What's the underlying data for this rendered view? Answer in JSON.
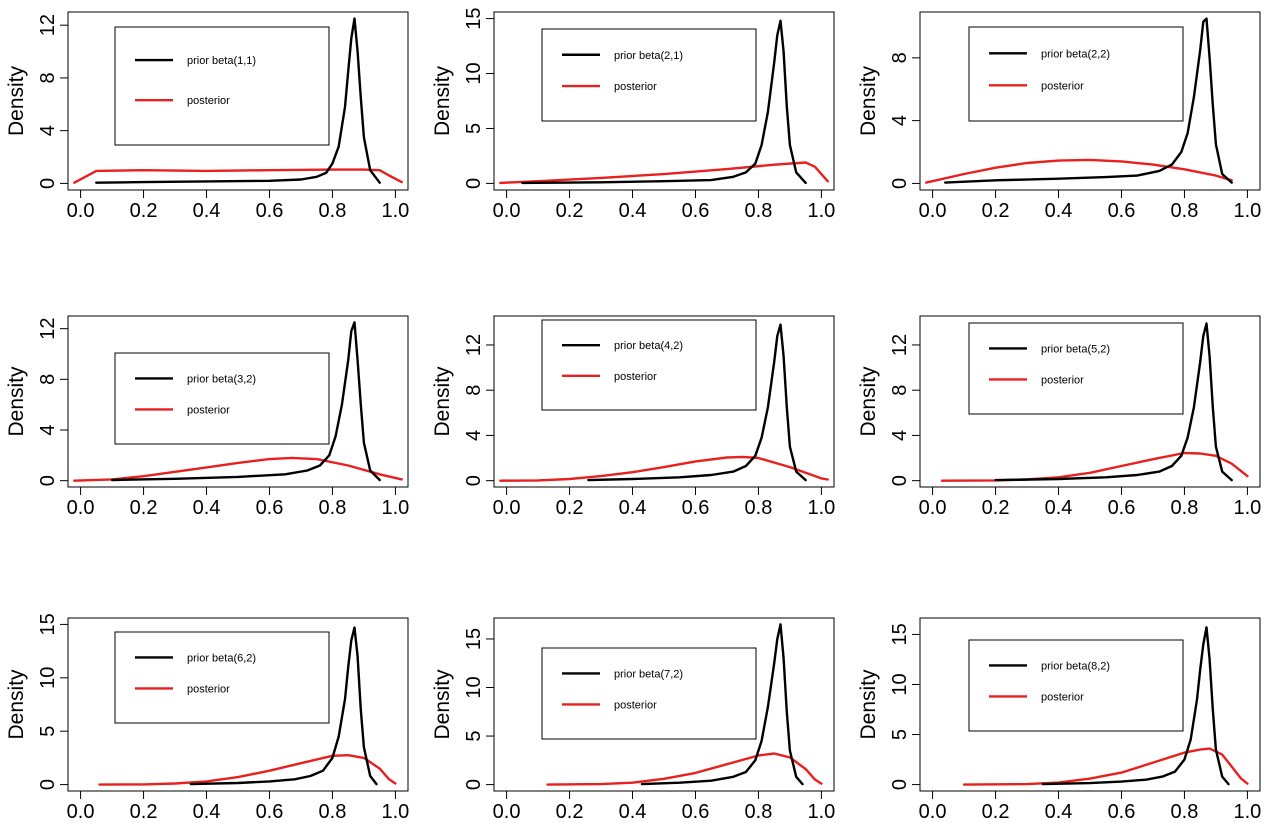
{
  "colors": {
    "prior": "#000000",
    "posterior": "#e8201e"
  },
  "chart_data": [
    {
      "type": "line",
      "ylabel": "Density",
      "xlim": [
        0,
        1.0
      ],
      "ylim": [
        0,
        12.5
      ],
      "xticks": [
        "0.0",
        "0.2",
        "0.4",
        "0.6",
        "0.8",
        "1.0"
      ],
      "yticks": [
        0,
        4,
        8,
        12
      ],
      "legend": {
        "position": "top-left",
        "entries": [
          "prior beta(1,1)",
          "posterior"
        ]
      },
      "series": [
        {
          "name": "prior beta(1,1)",
          "color": "#000000",
          "x": [
            0.05,
            0.2,
            0.4,
            0.6,
            0.7,
            0.75,
            0.78,
            0.8,
            0.82,
            0.84,
            0.85,
            0.86,
            0.87,
            0.88,
            0.89,
            0.9,
            0.92,
            0.95
          ],
          "y": [
            0.05,
            0.1,
            0.15,
            0.2,
            0.3,
            0.5,
            0.8,
            1.5,
            2.8,
            5.8,
            8.5,
            11.0,
            12.5,
            10.0,
            6.5,
            3.5,
            1.0,
            0.05
          ]
        },
        {
          "name": "posterior",
          "color": "#e8201e",
          "x": [
            -0.02,
            0.05,
            0.2,
            0.4,
            0.6,
            0.8,
            0.9,
            0.95,
            0.98,
            1.02
          ],
          "y": [
            0.05,
            0.95,
            1.0,
            0.95,
            1.0,
            1.05,
            1.05,
            1.0,
            0.6,
            0.1
          ]
        }
      ]
    },
    {
      "type": "line",
      "ylabel": "Density",
      "xlim": [
        0,
        1.0
      ],
      "ylim": [
        0,
        15
      ],
      "xticks": [
        "0.0",
        "0.2",
        "0.4",
        "0.6",
        "0.8",
        "1.0"
      ],
      "yticks": [
        0,
        5,
        10,
        15
      ],
      "legend": {
        "position": "top-left",
        "entries": [
          "prior beta(2,1)",
          "posterior"
        ]
      },
      "series": [
        {
          "name": "prior beta(2,1)",
          "color": "#000000",
          "x": [
            0.05,
            0.3,
            0.5,
            0.65,
            0.72,
            0.76,
            0.79,
            0.81,
            0.83,
            0.85,
            0.86,
            0.87,
            0.88,
            0.89,
            0.9,
            0.92,
            0.95
          ],
          "y": [
            0.05,
            0.1,
            0.2,
            0.3,
            0.6,
            1.0,
            1.8,
            3.5,
            6.5,
            11.0,
            13.5,
            14.8,
            12.0,
            7.0,
            3.5,
            1.0,
            0.05
          ]
        },
        {
          "name": "posterior",
          "color": "#e8201e",
          "x": [
            -0.02,
            0.1,
            0.3,
            0.5,
            0.7,
            0.85,
            0.95,
            0.98,
            1.02
          ],
          "y": [
            0.05,
            0.2,
            0.5,
            0.85,
            1.3,
            1.7,
            1.9,
            1.5,
            0.2
          ]
        }
      ]
    },
    {
      "type": "line",
      "ylabel": "Density",
      "xlim": [
        0,
        1.0
      ],
      "ylim": [
        0,
        10.5
      ],
      "xticks": [
        "0.0",
        "0.2",
        "0.4",
        "0.6",
        "0.8",
        "1.0"
      ],
      "yticks": [
        0,
        4,
        8
      ],
      "legend": {
        "position": "top-left",
        "entries": [
          "prior beta(2,2)",
          "posterior"
        ]
      },
      "series": [
        {
          "name": "prior beta(2,2)",
          "color": "#000000",
          "x": [
            0.04,
            0.2,
            0.4,
            0.55,
            0.65,
            0.72,
            0.76,
            0.79,
            0.81,
            0.83,
            0.85,
            0.86,
            0.87,
            0.88,
            0.89,
            0.9,
            0.92,
            0.95
          ],
          "y": [
            0.05,
            0.2,
            0.3,
            0.4,
            0.5,
            0.8,
            1.2,
            2.0,
            3.2,
            5.5,
            8.5,
            10.3,
            10.5,
            8.0,
            5.0,
            2.5,
            0.6,
            0.05
          ]
        },
        {
          "name": "posterior",
          "color": "#e8201e",
          "x": [
            -0.02,
            0.1,
            0.2,
            0.3,
            0.4,
            0.5,
            0.6,
            0.7,
            0.8,
            0.9,
            0.95
          ],
          "y": [
            0.05,
            0.6,
            1.0,
            1.3,
            1.45,
            1.5,
            1.4,
            1.2,
            0.9,
            0.5,
            0.2
          ]
        }
      ]
    },
    {
      "type": "line",
      "ylabel": "Density",
      "xlim": [
        0,
        1.0
      ],
      "ylim": [
        0,
        12.5
      ],
      "xticks": [
        "0.0",
        "0.2",
        "0.4",
        "0.6",
        "0.8",
        "1.0"
      ],
      "yticks": [
        0,
        4,
        8,
        12
      ],
      "legend": {
        "position": "top-left",
        "entries": [
          "prior beta(3,2)",
          "posterior"
        ]
      },
      "series": [
        {
          "name": "prior beta(3,2)",
          "color": "#000000",
          "x": [
            0.1,
            0.3,
            0.5,
            0.65,
            0.72,
            0.76,
            0.79,
            0.81,
            0.83,
            0.85,
            0.86,
            0.87,
            0.88,
            0.89,
            0.9,
            0.92,
            0.95
          ],
          "y": [
            0.05,
            0.15,
            0.3,
            0.5,
            0.8,
            1.2,
            2.0,
            3.5,
            6.0,
            9.5,
            11.8,
            12.5,
            9.5,
            6.0,
            3.0,
            0.8,
            0.05
          ]
        },
        {
          "name": "posterior",
          "color": "#e8201e",
          "x": [
            -0.02,
            0.1,
            0.2,
            0.3,
            0.4,
            0.5,
            0.6,
            0.67,
            0.75,
            0.85,
            0.95,
            1.02
          ],
          "y": [
            0.0,
            0.1,
            0.35,
            0.7,
            1.05,
            1.4,
            1.7,
            1.8,
            1.7,
            1.2,
            0.5,
            0.1
          ]
        }
      ]
    },
    {
      "type": "line",
      "ylabel": "Density",
      "xlim": [
        0,
        1.0
      ],
      "ylim": [
        0,
        14
      ],
      "xticks": [
        "0.0",
        "0.2",
        "0.4",
        "0.6",
        "0.8",
        "1.0"
      ],
      "yticks": [
        0,
        4,
        8,
        12
      ],
      "legend": {
        "position": "top-left",
        "entries": [
          "prior beta(4,2)",
          "posterior"
        ]
      },
      "series": [
        {
          "name": "prior beta(4,2)",
          "color": "#000000",
          "x": [
            0.26,
            0.4,
            0.55,
            0.65,
            0.72,
            0.76,
            0.79,
            0.81,
            0.83,
            0.85,
            0.86,
            0.87,
            0.88,
            0.89,
            0.9,
            0.92,
            0.95
          ],
          "y": [
            0.05,
            0.15,
            0.3,
            0.5,
            0.8,
            1.3,
            2.2,
            3.8,
            6.5,
            10.5,
            12.8,
            13.8,
            11.0,
            6.5,
            3.0,
            0.8,
            0.05
          ]
        },
        {
          "name": "posterior",
          "color": "#e8201e",
          "x": [
            -0.02,
            0.1,
            0.2,
            0.3,
            0.4,
            0.5,
            0.6,
            0.7,
            0.75,
            0.8,
            0.9,
            1.0,
            1.02
          ],
          "y": [
            0.0,
            0.02,
            0.15,
            0.4,
            0.75,
            1.2,
            1.7,
            2.05,
            2.1,
            2.0,
            1.2,
            0.2,
            0.1
          ]
        }
      ]
    },
    {
      "type": "line",
      "ylabel": "Density",
      "xlim": [
        0,
        1.0
      ],
      "ylim": [
        0,
        14
      ],
      "xticks": [
        "0.0",
        "0.2",
        "0.4",
        "0.6",
        "0.8",
        "1.0"
      ],
      "yticks": [
        0,
        4,
        8,
        12
      ],
      "legend": {
        "position": "top-left",
        "entries": [
          "prior beta(5,2)",
          "posterior"
        ]
      },
      "series": [
        {
          "name": "prior beta(5,2)",
          "color": "#000000",
          "x": [
            0.2,
            0.4,
            0.55,
            0.65,
            0.72,
            0.76,
            0.79,
            0.81,
            0.83,
            0.85,
            0.86,
            0.87,
            0.88,
            0.89,
            0.9,
            0.92,
            0.95
          ],
          "y": [
            0.05,
            0.15,
            0.3,
            0.5,
            0.8,
            1.3,
            2.2,
            3.8,
            6.5,
            10.5,
            12.8,
            13.9,
            11.0,
            6.5,
            3.0,
            0.8,
            0.05
          ]
        },
        {
          "name": "posterior",
          "color": "#e8201e",
          "x": [
            0.03,
            0.2,
            0.3,
            0.4,
            0.5,
            0.6,
            0.7,
            0.8,
            0.85,
            0.9,
            0.95,
            1.0
          ],
          "y": [
            0.0,
            0.02,
            0.1,
            0.3,
            0.7,
            1.3,
            1.9,
            2.45,
            2.4,
            2.2,
            1.5,
            0.4
          ]
        }
      ]
    },
    {
      "type": "line",
      "ylabel": "Density",
      "xlim": [
        0,
        1.0
      ],
      "ylim": [
        0,
        15
      ],
      "xticks": [
        "0.0",
        "0.2",
        "0.4",
        "0.6",
        "0.8",
        "1.0"
      ],
      "yticks": [
        0,
        5,
        10,
        15
      ],
      "legend": {
        "position": "top-left",
        "entries": [
          "prior beta(6,2)",
          "posterior"
        ]
      },
      "series": [
        {
          "name": "prior beta(6,2)",
          "color": "#000000",
          "x": [
            0.35,
            0.5,
            0.6,
            0.68,
            0.73,
            0.77,
            0.8,
            0.82,
            0.84,
            0.85,
            0.86,
            0.87,
            0.88,
            0.89,
            0.9,
            0.92,
            0.94
          ],
          "y": [
            0.05,
            0.15,
            0.3,
            0.5,
            0.8,
            1.3,
            2.5,
            4.5,
            8.0,
            11.0,
            13.5,
            14.7,
            12.0,
            7.0,
            3.5,
            0.8,
            0.05
          ]
        },
        {
          "name": "posterior",
          "color": "#e8201e",
          "x": [
            0.06,
            0.2,
            0.3,
            0.4,
            0.5,
            0.6,
            0.7,
            0.8,
            0.85,
            0.9,
            0.95,
            0.98,
            1.0
          ],
          "y": [
            0.0,
            0.02,
            0.1,
            0.3,
            0.7,
            1.3,
            2.0,
            2.7,
            2.75,
            2.5,
            1.5,
            0.5,
            0.1
          ]
        }
      ]
    },
    {
      "type": "line",
      "ylabel": "Density",
      "xlim": [
        0,
        1.0
      ],
      "ylim": [
        0,
        16.5
      ],
      "xticks": [
        "0.0",
        "0.2",
        "0.4",
        "0.6",
        "0.8",
        "1.0"
      ],
      "yticks": [
        0,
        5,
        10,
        15
      ],
      "legend": {
        "position": "top-left",
        "entries": [
          "prior beta(7,2)",
          "posterior"
        ]
      },
      "series": [
        {
          "name": "prior beta(7,2)",
          "color": "#000000",
          "x": [
            0.43,
            0.55,
            0.65,
            0.72,
            0.76,
            0.79,
            0.81,
            0.83,
            0.85,
            0.86,
            0.87,
            0.88,
            0.89,
            0.9,
            0.92,
            0.94
          ],
          "y": [
            0.05,
            0.2,
            0.4,
            0.8,
            1.3,
            2.5,
            4.5,
            8.0,
            12.5,
            15.0,
            16.5,
            13.0,
            7.5,
            3.5,
            0.8,
            0.05
          ]
        },
        {
          "name": "posterior",
          "color": "#e8201e",
          "x": [
            0.13,
            0.3,
            0.4,
            0.5,
            0.6,
            0.7,
            0.8,
            0.85,
            0.9,
            0.95,
            0.98,
            1.0
          ],
          "y": [
            0.0,
            0.05,
            0.2,
            0.6,
            1.2,
            2.1,
            3.0,
            3.2,
            2.8,
            1.6,
            0.5,
            0.1
          ]
        }
      ]
    },
    {
      "type": "line",
      "ylabel": "Density",
      "xlim": [
        0,
        1.0
      ],
      "ylim": [
        0,
        16
      ],
      "xticks": [
        "0.0",
        "0.2",
        "0.4",
        "0.6",
        "0.8",
        "1.0"
      ],
      "yticks": [
        0,
        5,
        10,
        15
      ],
      "legend": {
        "position": "top-left",
        "entries": [
          "prior beta(8,2)",
          "posterior"
        ]
      },
      "series": [
        {
          "name": "prior beta(8,2)",
          "color": "#000000",
          "x": [
            0.35,
            0.5,
            0.6,
            0.68,
            0.73,
            0.77,
            0.8,
            0.82,
            0.84,
            0.85,
            0.86,
            0.87,
            0.88,
            0.89,
            0.9,
            0.92,
            0.94
          ],
          "y": [
            0.05,
            0.15,
            0.3,
            0.5,
            0.8,
            1.3,
            2.5,
            4.5,
            8.5,
            11.5,
            14.0,
            15.7,
            12.5,
            7.5,
            3.5,
            0.8,
            0.05
          ]
        },
        {
          "name": "posterior",
          "color": "#e8201e",
          "x": [
            0.1,
            0.3,
            0.4,
            0.5,
            0.6,
            0.7,
            0.8,
            0.85,
            0.88,
            0.92,
            0.95,
            0.98,
            1.0
          ],
          "y": [
            0.0,
            0.05,
            0.2,
            0.6,
            1.2,
            2.2,
            3.2,
            3.5,
            3.6,
            3.0,
            1.8,
            0.6,
            0.1
          ]
        }
      ]
    }
  ]
}
